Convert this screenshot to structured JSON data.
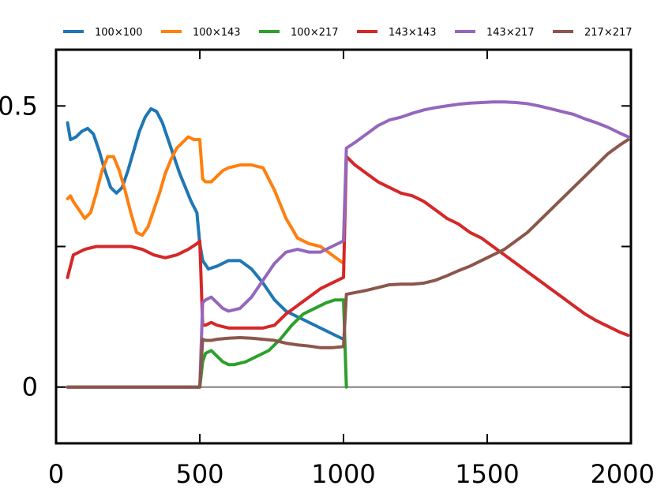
{
  "chart_data": {
    "type": "line",
    "title": "",
    "xlabel": "",
    "ylabel": "",
    "xlim": [
      0,
      2000
    ],
    "ylim": [
      -0.1,
      0.6
    ],
    "xticks": [
      0,
      500,
      1000,
      1500,
      2000
    ],
    "xtick_labels": [
      "0",
      "500",
      "1000",
      "1500",
      "2000"
    ],
    "yticks": [
      0,
      0.25,
      0.5
    ],
    "ytick_labels": [
      "0",
      "",
      "0.5"
    ],
    "grid": false,
    "legend_position": "top",
    "baseline_y": 0,
    "series": [
      {
        "name": "100×100",
        "color": "#1f77b4",
        "points": [
          [
            40,
            0.47
          ],
          [
            50,
            0.44
          ],
          [
            70,
            0.445
          ],
          [
            90,
            0.455
          ],
          [
            110,
            0.46
          ],
          [
            130,
            0.45
          ],
          [
            150,
            0.42
          ],
          [
            170,
            0.385
          ],
          [
            190,
            0.355
          ],
          [
            210,
            0.345
          ],
          [
            230,
            0.355
          ],
          [
            250,
            0.385
          ],
          [
            270,
            0.42
          ],
          [
            290,
            0.455
          ],
          [
            310,
            0.48
          ],
          [
            330,
            0.495
          ],
          [
            350,
            0.49
          ],
          [
            370,
            0.47
          ],
          [
            390,
            0.44
          ],
          [
            410,
            0.41
          ],
          [
            430,
            0.38
          ],
          [
            450,
            0.355
          ],
          [
            470,
            0.33
          ],
          [
            490,
            0.31
          ],
          [
            500,
            0.255
          ],
          [
            510,
            0.225
          ],
          [
            530,
            0.21
          ],
          [
            560,
            0.215
          ],
          [
            600,
            0.225
          ],
          [
            640,
            0.225
          ],
          [
            680,
            0.21
          ],
          [
            720,
            0.185
          ],
          [
            760,
            0.155
          ],
          [
            800,
            0.135
          ],
          [
            840,
            0.125
          ],
          [
            880,
            0.115
          ],
          [
            920,
            0.105
          ],
          [
            960,
            0.095
          ],
          [
            1000,
            0.085
          ]
        ]
      },
      {
        "name": "100×143",
        "color": "#ff7f0e",
        "points": [
          [
            40,
            0.335
          ],
          [
            50,
            0.34
          ],
          [
            60,
            0.33
          ],
          [
            80,
            0.315
          ],
          [
            100,
            0.3
          ],
          [
            120,
            0.31
          ],
          [
            140,
            0.345
          ],
          [
            160,
            0.385
          ],
          [
            180,
            0.41
          ],
          [
            200,
            0.41
          ],
          [
            220,
            0.385
          ],
          [
            240,
            0.35
          ],
          [
            260,
            0.31
          ],
          [
            280,
            0.275
          ],
          [
            300,
            0.27
          ],
          [
            320,
            0.285
          ],
          [
            340,
            0.315
          ],
          [
            360,
            0.345
          ],
          [
            380,
            0.38
          ],
          [
            400,
            0.405
          ],
          [
            420,
            0.425
          ],
          [
            440,
            0.435
          ],
          [
            460,
            0.445
          ],
          [
            480,
            0.44
          ],
          [
            500,
            0.44
          ],
          [
            510,
            0.37
          ],
          [
            520,
            0.365
          ],
          [
            540,
            0.365
          ],
          [
            560,
            0.375
          ],
          [
            580,
            0.385
          ],
          [
            600,
            0.39
          ],
          [
            640,
            0.395
          ],
          [
            680,
            0.395
          ],
          [
            720,
            0.39
          ],
          [
            760,
            0.35
          ],
          [
            800,
            0.3
          ],
          [
            840,
            0.265
          ],
          [
            880,
            0.255
          ],
          [
            920,
            0.25
          ],
          [
            960,
            0.235
          ],
          [
            1000,
            0.22
          ]
        ]
      },
      {
        "name": "100×217",
        "color": "#2ca02c",
        "points": [
          [
            40,
            0
          ],
          [
            500,
            0
          ],
          [
            510,
            0.045
          ],
          [
            520,
            0.06
          ],
          [
            540,
            0.065
          ],
          [
            560,
            0.055
          ],
          [
            580,
            0.045
          ],
          [
            600,
            0.04
          ],
          [
            620,
            0.04
          ],
          [
            660,
            0.045
          ],
          [
            700,
            0.055
          ],
          [
            740,
            0.065
          ],
          [
            780,
            0.085
          ],
          [
            820,
            0.11
          ],
          [
            860,
            0.13
          ],
          [
            900,
            0.14
          ],
          [
            940,
            0.15
          ],
          [
            970,
            0.155
          ],
          [
            1000,
            0.155
          ],
          [
            1010,
            0
          ]
        ]
      },
      {
        "name": "143×143",
        "color": "#d62728",
        "points": [
          [
            40,
            0.195
          ],
          [
            60,
            0.235
          ],
          [
            80,
            0.24
          ],
          [
            100,
            0.245
          ],
          [
            140,
            0.25
          ],
          [
            180,
            0.25
          ],
          [
            220,
            0.25
          ],
          [
            260,
            0.25
          ],
          [
            300,
            0.245
          ],
          [
            340,
            0.235
          ],
          [
            380,
            0.23
          ],
          [
            420,
            0.235
          ],
          [
            460,
            0.245
          ],
          [
            490,
            0.255
          ],
          [
            500,
            0.26
          ],
          [
            510,
            0.11
          ],
          [
            520,
            0.11
          ],
          [
            540,
            0.115
          ],
          [
            560,
            0.11
          ],
          [
            600,
            0.105
          ],
          [
            640,
            0.105
          ],
          [
            680,
            0.105
          ],
          [
            720,
            0.105
          ],
          [
            760,
            0.11
          ],
          [
            800,
            0.13
          ],
          [
            840,
            0.145
          ],
          [
            880,
            0.16
          ],
          [
            920,
            0.175
          ],
          [
            960,
            0.185
          ],
          [
            1000,
            0.195
          ],
          [
            1010,
            0.41
          ],
          [
            1040,
            0.395
          ],
          [
            1080,
            0.38
          ],
          [
            1120,
            0.365
          ],
          [
            1160,
            0.355
          ],
          [
            1200,
            0.345
          ],
          [
            1240,
            0.34
          ],
          [
            1280,
            0.33
          ],
          [
            1320,
            0.315
          ],
          [
            1360,
            0.3
          ],
          [
            1400,
            0.29
          ],
          [
            1440,
            0.275
          ],
          [
            1480,
            0.265
          ],
          [
            1520,
            0.25
          ],
          [
            1560,
            0.235
          ],
          [
            1600,
            0.22
          ],
          [
            1640,
            0.205
          ],
          [
            1680,
            0.19
          ],
          [
            1720,
            0.175
          ],
          [
            1760,
            0.16
          ],
          [
            1800,
            0.145
          ],
          [
            1840,
            0.13
          ],
          [
            1880,
            0.118
          ],
          [
            1920,
            0.108
          ],
          [
            1960,
            0.098
          ],
          [
            1990,
            0.092
          ]
        ]
      },
      {
        "name": "143×217",
        "color": "#9467bd",
        "points": [
          [
            40,
            0
          ],
          [
            500,
            0
          ],
          [
            510,
            0.15
          ],
          [
            520,
            0.155
          ],
          [
            540,
            0.16
          ],
          [
            560,
            0.15
          ],
          [
            580,
            0.14
          ],
          [
            600,
            0.135
          ],
          [
            640,
            0.14
          ],
          [
            680,
            0.16
          ],
          [
            720,
            0.19
          ],
          [
            760,
            0.22
          ],
          [
            800,
            0.24
          ],
          [
            840,
            0.245
          ],
          [
            880,
            0.24
          ],
          [
            920,
            0.24
          ],
          [
            960,
            0.25
          ],
          [
            1000,
            0.26
          ],
          [
            1010,
            0.425
          ],
          [
            1040,
            0.435
          ],
          [
            1080,
            0.45
          ],
          [
            1120,
            0.465
          ],
          [
            1160,
            0.475
          ],
          [
            1200,
            0.48
          ],
          [
            1240,
            0.487
          ],
          [
            1280,
            0.493
          ],
          [
            1320,
            0.497
          ],
          [
            1360,
            0.5
          ],
          [
            1400,
            0.503
          ],
          [
            1440,
            0.505
          ],
          [
            1480,
            0.506
          ],
          [
            1520,
            0.507
          ],
          [
            1560,
            0.507
          ],
          [
            1600,
            0.506
          ],
          [
            1640,
            0.504
          ],
          [
            1680,
            0.5
          ],
          [
            1720,
            0.495
          ],
          [
            1760,
            0.49
          ],
          [
            1800,
            0.485
          ],
          [
            1840,
            0.477
          ],
          [
            1880,
            0.47
          ],
          [
            1920,
            0.462
          ],
          [
            1960,
            0.452
          ],
          [
            1990,
            0.445
          ]
        ]
      },
      {
        "name": "217×217",
        "color": "#8c564b",
        "points": [
          [
            40,
            0
          ],
          [
            500,
            0
          ],
          [
            510,
            0.085
          ],
          [
            520,
            0.083
          ],
          [
            540,
            0.083
          ],
          [
            560,
            0.085
          ],
          [
            600,
            0.087
          ],
          [
            640,
            0.088
          ],
          [
            680,
            0.087
          ],
          [
            720,
            0.085
          ],
          [
            760,
            0.083
          ],
          [
            800,
            0.078
          ],
          [
            840,
            0.075
          ],
          [
            880,
            0.073
          ],
          [
            920,
            0.07
          ],
          [
            960,
            0.07
          ],
          [
            1000,
            0.072
          ],
          [
            1010,
            0.165
          ],
          [
            1040,
            0.168
          ],
          [
            1080,
            0.172
          ],
          [
            1120,
            0.177
          ],
          [
            1160,
            0.182
          ],
          [
            1200,
            0.183
          ],
          [
            1240,
            0.183
          ],
          [
            1280,
            0.185
          ],
          [
            1320,
            0.19
          ],
          [
            1360,
            0.198
          ],
          [
            1400,
            0.207
          ],
          [
            1440,
            0.215
          ],
          [
            1480,
            0.225
          ],
          [
            1520,
            0.235
          ],
          [
            1560,
            0.245
          ],
          [
            1600,
            0.26
          ],
          [
            1640,
            0.275
          ],
          [
            1680,
            0.295
          ],
          [
            1720,
            0.315
          ],
          [
            1760,
            0.335
          ],
          [
            1800,
            0.355
          ],
          [
            1840,
            0.375
          ],
          [
            1880,
            0.395
          ],
          [
            1920,
            0.415
          ],
          [
            1960,
            0.43
          ],
          [
            1990,
            0.44
          ]
        ]
      }
    ]
  }
}
